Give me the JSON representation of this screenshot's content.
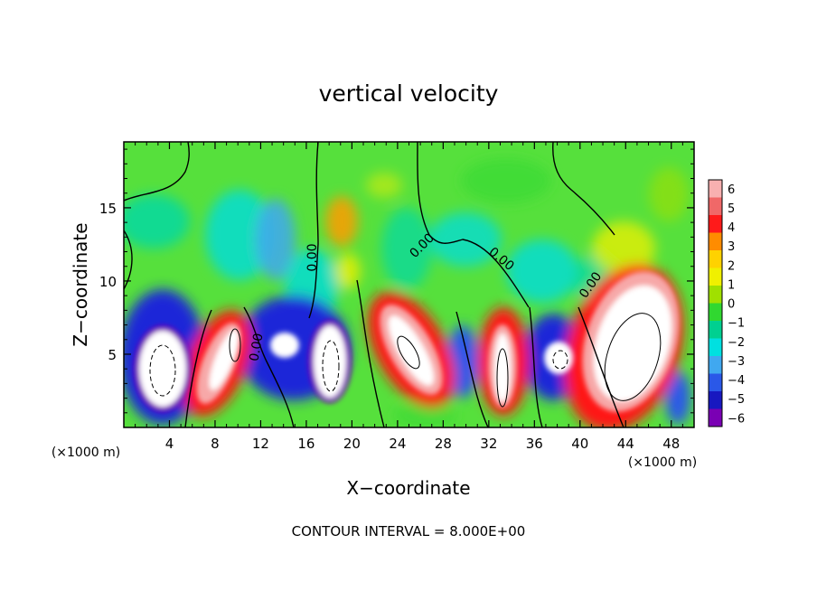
{
  "chart_data": {
    "type": "heatmap",
    "title": "vertical velocity",
    "xlabel": "X−coordinate",
    "ylabel": "Z−coordinate",
    "x_unit": "(×1000 m)",
    "z_unit": "(×1000 m)",
    "xlim": [
      0,
      50
    ],
    "ylim": [
      0,
      19.5
    ],
    "x_ticks": [
      "4",
      "8",
      "12",
      "16",
      "20",
      "24",
      "28",
      "32",
      "36",
      "40",
      "44",
      "48"
    ],
    "x_tick_values": [
      4,
      8,
      12,
      16,
      20,
      24,
      28,
      32,
      36,
      40,
      44,
      48
    ],
    "y_ticks": [
      "5",
      "10",
      "15"
    ],
    "y_tick_values": [
      5,
      10,
      15
    ],
    "colorbar": {
      "labels": [
        "6",
        "5",
        "4",
        "3",
        "2",
        "1",
        "0",
        "−1",
        "−2",
        "−3",
        "−4",
        "−5",
        "−6"
      ],
      "values": [
        6,
        5,
        4,
        3,
        2,
        1,
        0,
        -1,
        -2,
        -3,
        -4,
        -5,
        -6
      ],
      "colors": [
        "#f8b0b0",
        "#f06868",
        "#ff1a1a",
        "#ff8c00",
        "#ffd200",
        "#f0f000",
        "#a0e000",
        "#30d830",
        "#00d090",
        "#00e0e0",
        "#40a8f0",
        "#2a58e8",
        "#1818c0",
        "#7a00b4"
      ]
    },
    "contour_labels": [
      "0.00",
      "0.00",
      "0.00",
      "0.00",
      "0.00"
    ],
    "contour_interval_text": "CONTOUR INTERVAL = 8.000E+00"
  }
}
